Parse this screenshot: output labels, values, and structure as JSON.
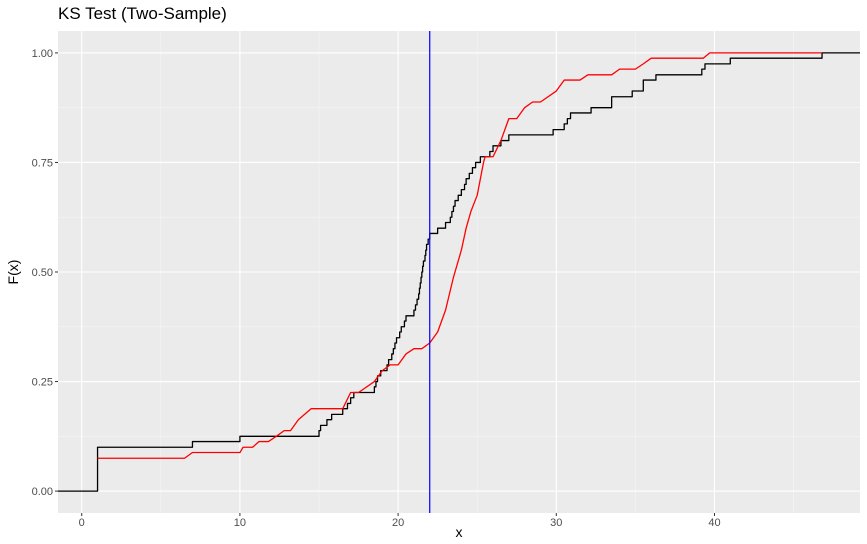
{
  "chart_data": {
    "type": "line",
    "title": "KS Test (Two-Sample)",
    "xlabel": "x",
    "ylabel": "F(x)",
    "xlim": [
      -1.5,
      49.2
    ],
    "ylim": [
      -0.05,
      1.05
    ],
    "x_ticks": [
      0,
      10,
      20,
      30,
      40
    ],
    "y_ticks": [
      0.0,
      0.25,
      0.5,
      0.75,
      1.0
    ],
    "y_tick_labels": [
      "0.00",
      "0.25",
      "0.50",
      "0.75",
      "1.00"
    ],
    "grid": true,
    "background": "#ebebeb",
    "vline": {
      "x": 22,
      "color": "#0000ff"
    },
    "series": [
      {
        "color": "#000000",
        "step": true,
        "points": [
          [
            -1.5,
            0.0
          ],
          [
            1.0,
            0.0
          ],
          [
            1.0,
            0.1
          ],
          [
            7.0,
            0.1
          ],
          [
            7.0,
            0.113
          ],
          [
            10.0,
            0.113
          ],
          [
            10.0,
            0.125
          ],
          [
            15.0,
            0.125
          ],
          [
            15.0,
            0.138
          ],
          [
            15.1,
            0.138
          ],
          [
            15.1,
            0.15
          ],
          [
            15.5,
            0.15
          ],
          [
            15.5,
            0.163
          ],
          [
            15.8,
            0.163
          ],
          [
            15.8,
            0.175
          ],
          [
            16.5,
            0.175
          ],
          [
            16.5,
            0.188
          ],
          [
            16.8,
            0.188
          ],
          [
            16.8,
            0.2
          ],
          [
            17.0,
            0.2
          ],
          [
            17.0,
            0.213
          ],
          [
            17.2,
            0.213
          ],
          [
            17.2,
            0.225
          ],
          [
            18.5,
            0.225
          ],
          [
            18.5,
            0.238
          ],
          [
            18.6,
            0.238
          ],
          [
            18.6,
            0.25
          ],
          [
            18.7,
            0.25
          ],
          [
            18.7,
            0.263
          ],
          [
            18.9,
            0.263
          ],
          [
            18.9,
            0.275
          ],
          [
            19.3,
            0.275
          ],
          [
            19.3,
            0.288
          ],
          [
            19.4,
            0.288
          ],
          [
            19.4,
            0.3
          ],
          [
            19.6,
            0.3
          ],
          [
            19.6,
            0.313
          ],
          [
            19.7,
            0.313
          ],
          [
            19.7,
            0.325
          ],
          [
            19.8,
            0.325
          ],
          [
            19.8,
            0.338
          ],
          [
            19.9,
            0.338
          ],
          [
            19.9,
            0.35
          ],
          [
            20.1,
            0.35
          ],
          [
            20.1,
            0.363
          ],
          [
            20.2,
            0.363
          ],
          [
            20.2,
            0.375
          ],
          [
            20.4,
            0.375
          ],
          [
            20.4,
            0.388
          ],
          [
            20.5,
            0.388
          ],
          [
            20.5,
            0.4
          ],
          [
            21.0,
            0.4
          ],
          [
            21.0,
            0.413
          ],
          [
            21.1,
            0.413
          ],
          [
            21.1,
            0.425
          ],
          [
            21.2,
            0.425
          ],
          [
            21.2,
            0.438
          ],
          [
            21.3,
            0.438
          ],
          [
            21.3,
            0.45
          ],
          [
            21.35,
            0.45
          ],
          [
            21.35,
            0.463
          ],
          [
            21.4,
            0.463
          ],
          [
            21.4,
            0.475
          ],
          [
            21.45,
            0.475
          ],
          [
            21.45,
            0.488
          ],
          [
            21.5,
            0.488
          ],
          [
            21.5,
            0.5
          ],
          [
            21.55,
            0.5
          ],
          [
            21.55,
            0.513
          ],
          [
            21.6,
            0.513
          ],
          [
            21.6,
            0.525
          ],
          [
            21.7,
            0.525
          ],
          [
            21.7,
            0.538
          ],
          [
            21.75,
            0.538
          ],
          [
            21.75,
            0.55
          ],
          [
            21.8,
            0.55
          ],
          [
            21.8,
            0.563
          ],
          [
            21.9,
            0.563
          ],
          [
            21.9,
            0.575
          ],
          [
            22.0,
            0.575
          ],
          [
            22.0,
            0.588
          ],
          [
            22.5,
            0.588
          ],
          [
            22.5,
            0.6
          ],
          [
            23.0,
            0.6
          ],
          [
            23.0,
            0.613
          ],
          [
            23.3,
            0.613
          ],
          [
            23.3,
            0.625
          ],
          [
            23.4,
            0.625
          ],
          [
            23.4,
            0.638
          ],
          [
            23.5,
            0.638
          ],
          [
            23.5,
            0.65
          ],
          [
            23.6,
            0.65
          ],
          [
            23.6,
            0.663
          ],
          [
            23.8,
            0.663
          ],
          [
            23.8,
            0.675
          ],
          [
            24.0,
            0.675
          ],
          [
            24.0,
            0.688
          ],
          [
            24.2,
            0.688
          ],
          [
            24.2,
            0.7
          ],
          [
            24.3,
            0.7
          ],
          [
            24.3,
            0.713
          ],
          [
            24.5,
            0.713
          ],
          [
            24.5,
            0.725
          ],
          [
            24.7,
            0.725
          ],
          [
            24.7,
            0.738
          ],
          [
            24.9,
            0.738
          ],
          [
            24.9,
            0.75
          ],
          [
            25.2,
            0.75
          ],
          [
            25.2,
            0.763
          ],
          [
            25.8,
            0.763
          ],
          [
            25.8,
            0.775
          ],
          [
            26.0,
            0.775
          ],
          [
            26.0,
            0.788
          ],
          [
            26.5,
            0.788
          ],
          [
            26.5,
            0.8
          ],
          [
            27.0,
            0.8
          ],
          [
            27.0,
            0.813
          ],
          [
            29.8,
            0.813
          ],
          [
            29.8,
            0.825
          ],
          [
            30.5,
            0.825
          ],
          [
            30.5,
            0.838
          ],
          [
            30.7,
            0.838
          ],
          [
            30.7,
            0.85
          ],
          [
            30.9,
            0.85
          ],
          [
            30.9,
            0.863
          ],
          [
            32.2,
            0.863
          ],
          [
            32.2,
            0.875
          ],
          [
            33.5,
            0.875
          ],
          [
            33.5,
            0.9
          ],
          [
            34.8,
            0.9
          ],
          [
            34.8,
            0.913
          ],
          [
            35.5,
            0.913
          ],
          [
            35.5,
            0.938
          ],
          [
            36.3,
            0.938
          ],
          [
            36.3,
            0.95
          ],
          [
            39.2,
            0.95
          ],
          [
            39.2,
            0.963
          ],
          [
            39.4,
            0.963
          ],
          [
            39.4,
            0.975
          ],
          [
            41.0,
            0.975
          ],
          [
            41.0,
            0.988
          ],
          [
            46.8,
            0.988
          ],
          [
            46.8,
            1.0
          ],
          [
            49.2,
            1.0
          ]
        ]
      },
      {
        "color": "#ff0000",
        "step": false,
        "points": [
          [
            1.0,
            0.075
          ],
          [
            6.5,
            0.075
          ],
          [
            7.0,
            0.088
          ],
          [
            10.0,
            0.088
          ],
          [
            10.2,
            0.1
          ],
          [
            10.8,
            0.1
          ],
          [
            11.2,
            0.113
          ],
          [
            11.8,
            0.113
          ],
          [
            12.3,
            0.125
          ],
          [
            12.8,
            0.138
          ],
          [
            13.2,
            0.138
          ],
          [
            13.7,
            0.163
          ],
          [
            14.5,
            0.188
          ],
          [
            16.5,
            0.188
          ],
          [
            17.0,
            0.225
          ],
          [
            17.5,
            0.225
          ],
          [
            18.5,
            0.25
          ],
          [
            19.0,
            0.275
          ],
          [
            19.5,
            0.288
          ],
          [
            20.0,
            0.288
          ],
          [
            20.5,
            0.313
          ],
          [
            21.0,
            0.325
          ],
          [
            21.5,
            0.325
          ],
          [
            22.0,
            0.338
          ],
          [
            22.5,
            0.363
          ],
          [
            23.0,
            0.413
          ],
          [
            23.5,
            0.488
          ],
          [
            24.0,
            0.55
          ],
          [
            24.3,
            0.6
          ],
          [
            24.6,
            0.638
          ],
          [
            25.0,
            0.675
          ],
          [
            25.4,
            0.75
          ],
          [
            25.5,
            0.763
          ],
          [
            26.0,
            0.763
          ],
          [
            26.5,
            0.8
          ],
          [
            27.0,
            0.85
          ],
          [
            27.5,
            0.85
          ],
          [
            28.0,
            0.875
          ],
          [
            28.5,
            0.888
          ],
          [
            29.0,
            0.888
          ],
          [
            30.0,
            0.913
          ],
          [
            30.5,
            0.938
          ],
          [
            31.5,
            0.938
          ],
          [
            32.0,
            0.95
          ],
          [
            33.5,
            0.95
          ],
          [
            34.0,
            0.963
          ],
          [
            35.0,
            0.963
          ],
          [
            35.5,
            0.975
          ],
          [
            36.0,
            0.988
          ],
          [
            39.3,
            0.988
          ],
          [
            39.7,
            1.0
          ],
          [
            46.8,
            1.0
          ]
        ]
      }
    ]
  }
}
